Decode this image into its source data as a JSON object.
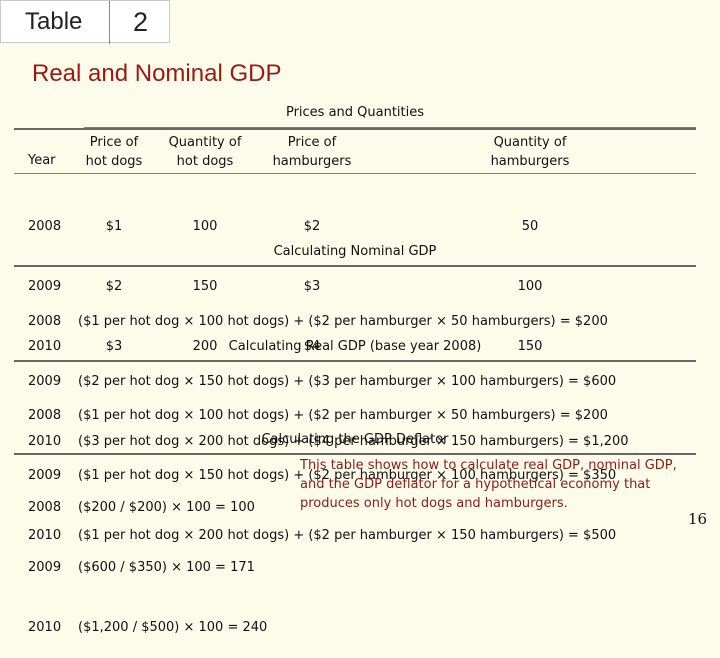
{
  "header": {
    "table_word": "Table",
    "table_number": "2"
  },
  "title": "Real and Nominal GDP",
  "prices": {
    "heading": "Prices and Quantities",
    "columns": {
      "year": "Year",
      "price_hotdogs": [
        "Price of",
        "hot dogs"
      ],
      "qty_hotdogs": [
        "Quantity of",
        "hot dogs"
      ],
      "price_hamburgers": [
        "Price of",
        "hamburgers"
      ],
      "qty_hamburgers": [
        "Quantity of",
        "hamburgers"
      ]
    },
    "rows": [
      {
        "year": "2008",
        "price_hd": "$1",
        "qty_hd": "100",
        "price_hb": "$2",
        "qty_hb": "50"
      },
      {
        "year": "2009",
        "price_hd": "$2",
        "qty_hd": "150",
        "price_hb": "$3",
        "qty_hb": "100"
      },
      {
        "year": "2010",
        "price_hd": "$3",
        "qty_hd": "200",
        "price_hb": "$4",
        "qty_hb": "150"
      }
    ]
  },
  "nominal": {
    "heading": "Calculating Nominal GDP",
    "years": [
      "2008",
      "2009",
      "2010"
    ],
    "rows": [
      "($1 per hot dog × 100 hot dogs) + ($2 per hamburger × 50 hamburgers) = $200",
      "($2 per hot dog × 150 hot dogs) + ($3 per hamburger × 100 hamburgers) = $600",
      "($3 per hot dog × 200 hot dogs) + ($4 per hamburger × 150 hamburgers) = $1,200"
    ]
  },
  "real": {
    "heading": "Calculating Real GDP (base year 2008)",
    "years": [
      "2008",
      "2009",
      "2010"
    ],
    "rows": [
      "($1 per hot dog × 100 hot dogs) + ($2 per hamburger × 50 hamburgers) = $200",
      "($1 per hot dog × 150 hot dogs) + ($2 per hamburger × 100 hamburgers) = $350",
      "($1 per hot dog × 200 hot dogs) + ($2 per hamburger × 150 hamburgers) = $500"
    ]
  },
  "deflator": {
    "heading": "Calculating the GDP Deflator",
    "years": [
      "2008",
      "2009",
      "2010"
    ],
    "rows": [
      "($200 / $200) × 100 = 100",
      "($600 / $350) × 100 = 171",
      "($1,200 / $500) × 100 = 240"
    ]
  },
  "note": "This table shows how to calculate real GDP, nominal GDP, and the GDP deflator for a hypothetical economy that produces only hot dogs and hamburgers.",
  "page_number": "16",
  "colors": {
    "title": "#9a1a12",
    "note": "#8a1c16",
    "background": "#fdfbea"
  }
}
